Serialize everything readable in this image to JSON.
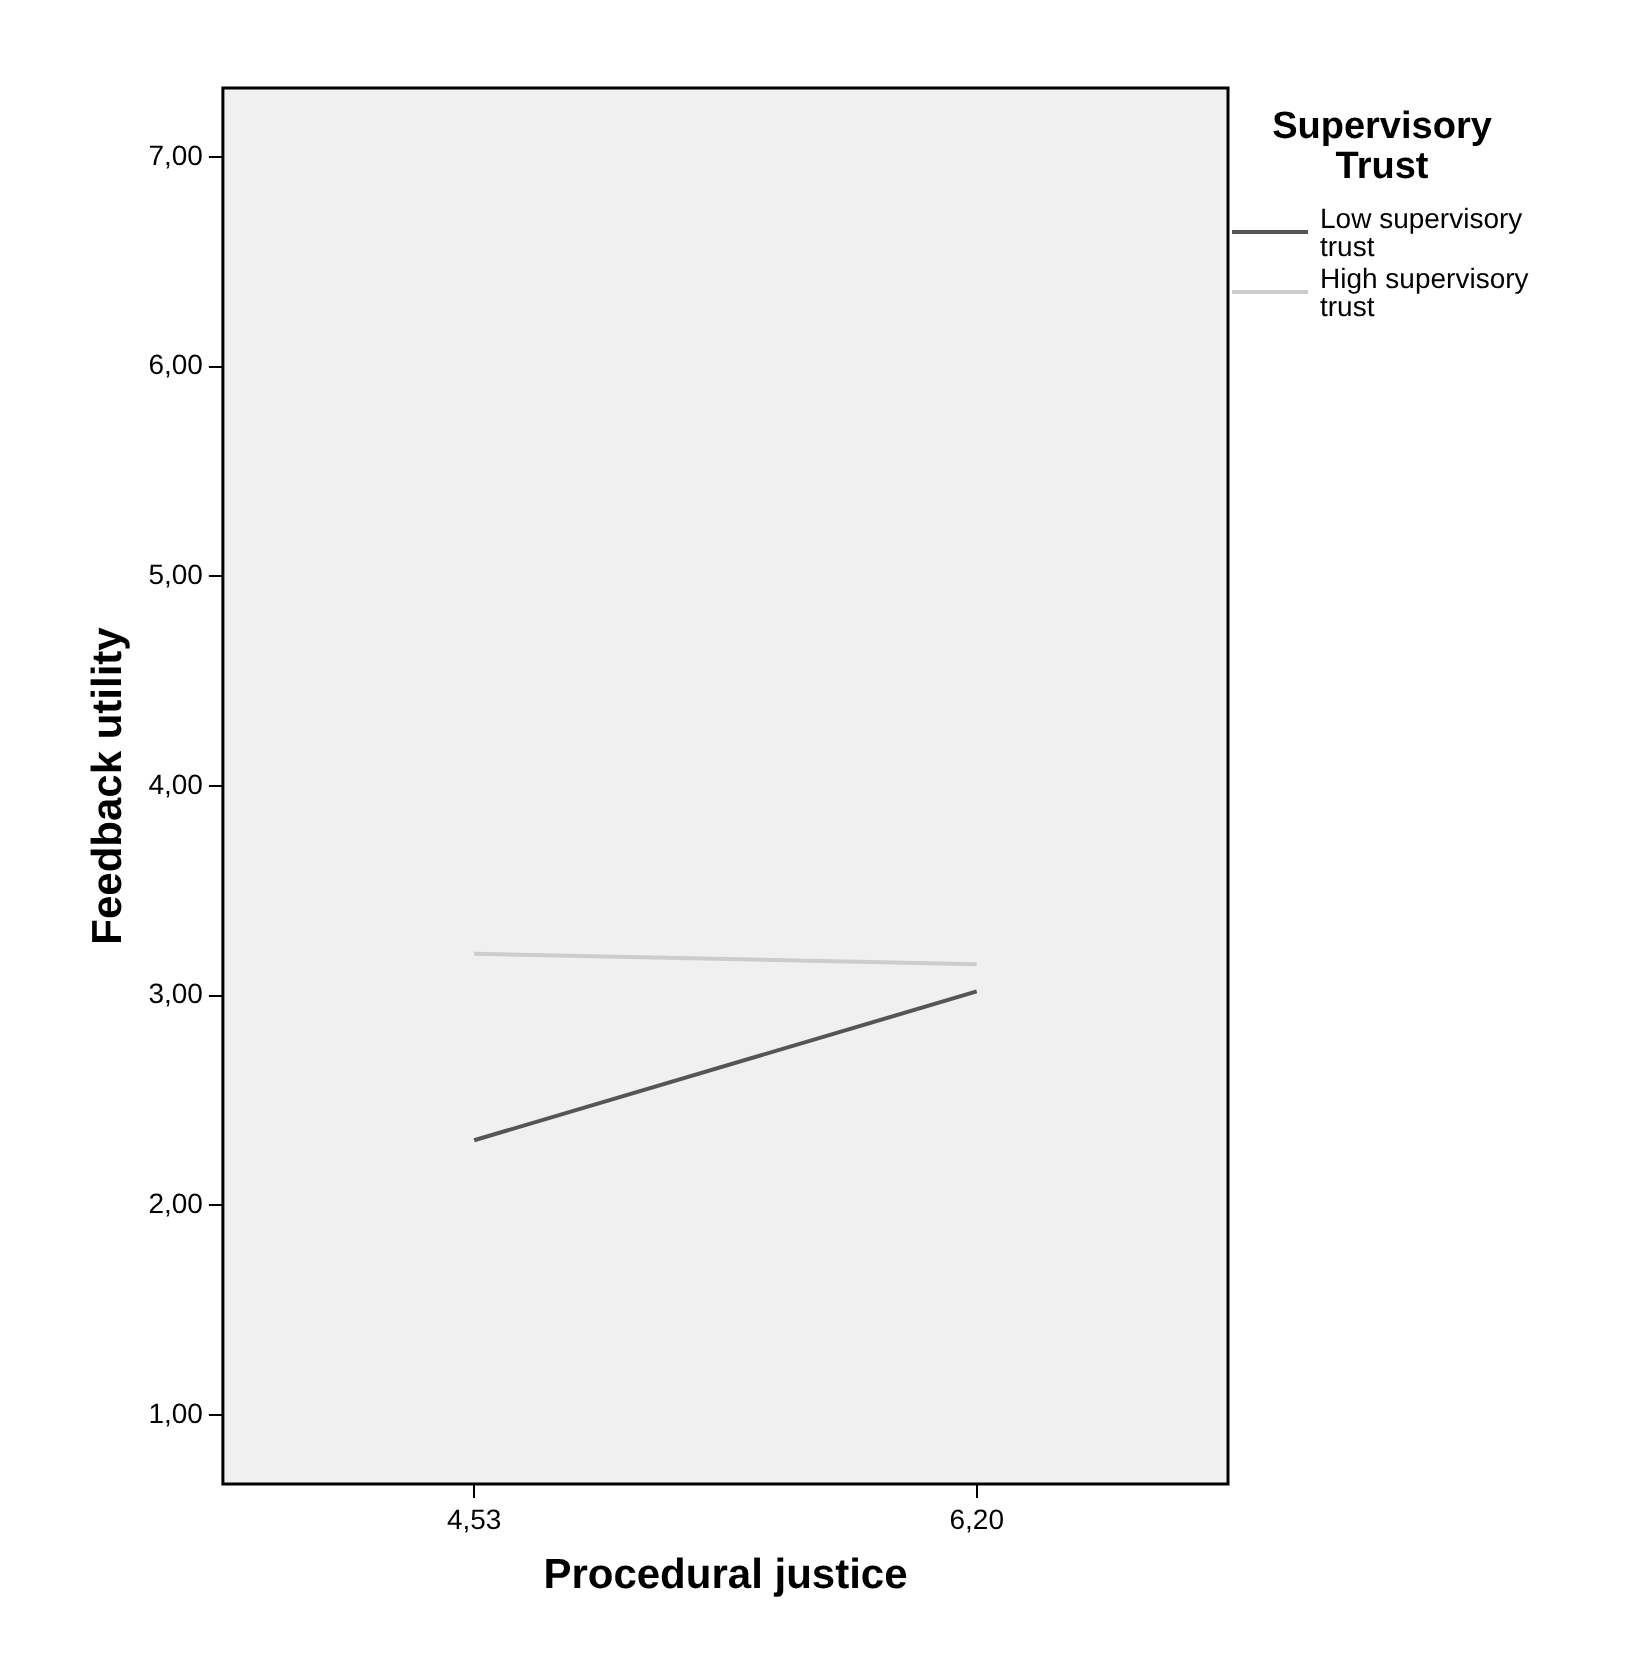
{
  "chart_data": {
    "type": "line",
    "xlabel": "Procedural justice",
    "ylabel": "Feedback utility",
    "legend_title": "Supervisory Trust",
    "categories": [
      "4,53",
      "6,20"
    ],
    "series": [
      {
        "name": "Low supervisory trust",
        "color": "#555555",
        "values": [
          2.31,
          3.02
        ]
      },
      {
        "name": "High supervisory trust",
        "color": "#cccccc",
        "values": [
          3.2,
          3.15
        ]
      }
    ],
    "ylim": [
      0.67,
      7.33
    ],
    "yticks": [
      {
        "value": 1,
        "label": "1,00"
      },
      {
        "value": 2,
        "label": "2,00"
      },
      {
        "value": 3,
        "label": "3,00"
      },
      {
        "value": 4,
        "label": "4,00"
      },
      {
        "value": 5,
        "label": "5,00"
      },
      {
        "value": 6,
        "label": "6,00"
      },
      {
        "value": 7,
        "label": "7,00"
      }
    ],
    "grid": false,
    "legend": "top right",
    "marker": "none",
    "line_style": "solid"
  }
}
